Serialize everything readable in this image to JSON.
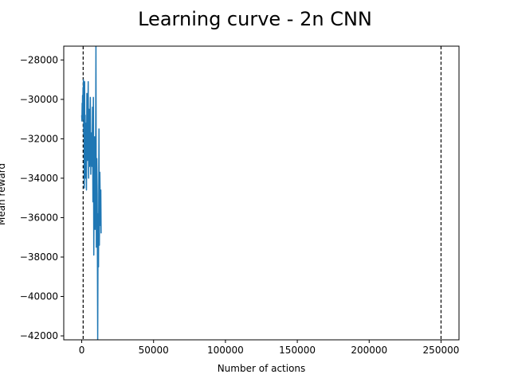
{
  "chart_data": {
    "type": "line",
    "title": "Learning curve - 2n CNN",
    "xlabel": "Number of actions",
    "ylabel": "Mean reward",
    "xlim": [
      -12500,
      262500
    ],
    "ylim": [
      -42200,
      -27300
    ],
    "x_ticks": [
      0,
      50000,
      100000,
      150000,
      200000,
      250000
    ],
    "x_tick_labels": [
      "0",
      "50000",
      "100000",
      "150000",
      "200000",
      "250000"
    ],
    "y_ticks": [
      -28000,
      -30000,
      -32000,
      -34000,
      -36000,
      -38000,
      -40000,
      -42000
    ],
    "y_tick_labels": [
      "−28000",
      "−30000",
      "−32000",
      "−34000",
      "−36000",
      "−38000",
      "−40000",
      "−42000"
    ],
    "grid": false,
    "reference_lines": [
      {
        "orientation": "vertical",
        "x": 1000,
        "style": "dashed",
        "color": "#000000"
      },
      {
        "orientation": "vertical",
        "x": 250000,
        "style": "dashed",
        "color": "#000000"
      }
    ],
    "series": [
      {
        "color": "#1f77b4",
        "x": [
          0,
          150,
          300,
          450,
          600,
          750,
          900,
          1050,
          1200,
          1400,
          1600,
          1800,
          2000,
          2200,
          2400,
          2600,
          2800,
          3000,
          3300,
          3600,
          3900,
          4200,
          4500,
          4800,
          5100,
          5400,
          5700,
          6000,
          6300,
          6600,
          6900,
          7200,
          7500,
          7800,
          8100,
          8400,
          8700,
          9000,
          9300,
          9600,
          9900,
          10200,
          10500,
          10800,
          11100,
          11400,
          11700,
          12000,
          12300,
          12600,
          12900,
          13100,
          13300,
          13500
        ],
        "y": [
          -30800,
          -31100,
          -30200,
          -30600,
          -29800,
          -31000,
          -29400,
          -30400,
          -29000,
          -31800,
          -29200,
          -34500,
          -29100,
          -33200,
          -30800,
          -34000,
          -31200,
          -32700,
          -34600,
          -29700,
          -33100,
          -31400,
          -29100,
          -34000,
          -30500,
          -33400,
          -31500,
          -29900,
          -33800,
          -32100,
          -31700,
          -33400,
          -30400,
          -35200,
          -29900,
          -37900,
          -33500,
          -31900,
          -36600,
          -34200,
          -27200,
          -37500,
          -33000,
          -34800,
          -42200,
          -35800,
          -38500,
          -31500,
          -37400,
          -33700,
          -35300,
          -36400,
          -34600,
          -36800
        ]
      }
    ]
  }
}
